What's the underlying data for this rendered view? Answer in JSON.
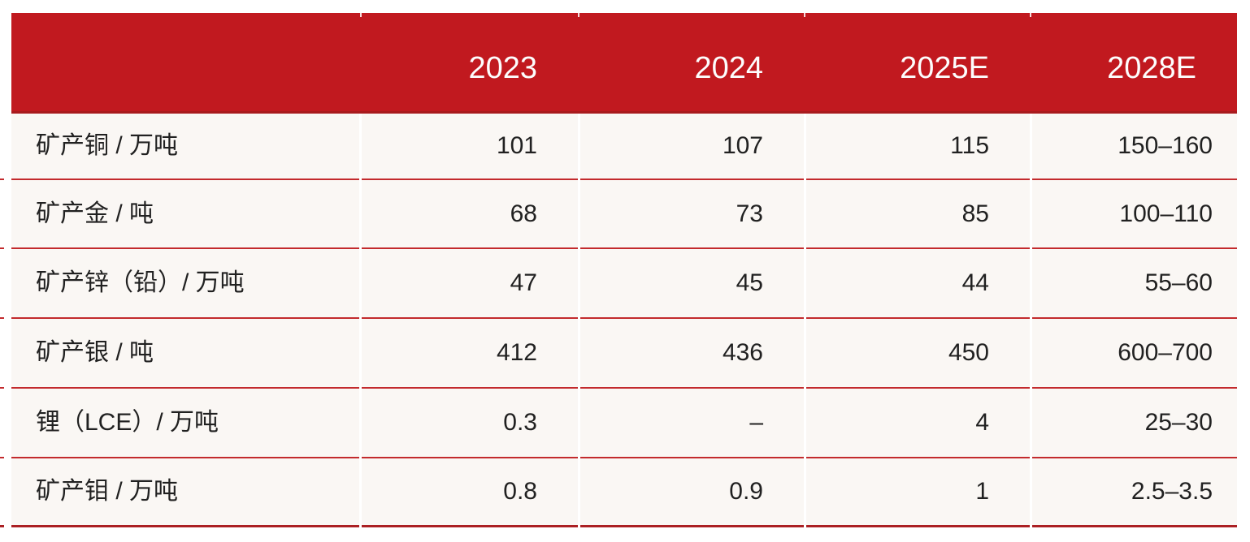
{
  "colors": {
    "page_bg": "#ffffff",
    "header_bg": "#c1191f",
    "header_edge": "#a81b1e",
    "header_text": "#fdfdfd",
    "row_bg": "#faf7f4",
    "line": "#c32a2d",
    "line_dark": "#ab2023",
    "body_text": "#212121"
  },
  "chart_data": {
    "type": "table",
    "columns": [
      "",
      "2023",
      "2024",
      "2025E",
      "2028E"
    ],
    "rows": [
      {
        "label": "矿产铜 / 万吨",
        "values": [
          "101",
          "107",
          "115",
          "150–160"
        ]
      },
      {
        "label": "矿产金 / 吨",
        "values": [
          "68",
          "73",
          "85",
          "100–110"
        ]
      },
      {
        "label": "矿产锌（铅）/ 万吨",
        "values": [
          "47",
          "45",
          "44",
          "55–60"
        ]
      },
      {
        "label": "矿产银 / 吨",
        "values": [
          "412",
          "436",
          "450",
          "600–700"
        ]
      },
      {
        "label": "锂（LCE）/ 万吨",
        "values": [
          "0.3",
          "–",
          "4",
          "25–30"
        ]
      },
      {
        "label": "矿产钼 / 万吨",
        "values": [
          "0.8",
          "0.9",
          "1",
          "2.5–3.5"
        ]
      }
    ],
    "layout": {
      "header_position": "top",
      "value_alignment": "right",
      "gridlines": "horizontal-red"
    }
  }
}
